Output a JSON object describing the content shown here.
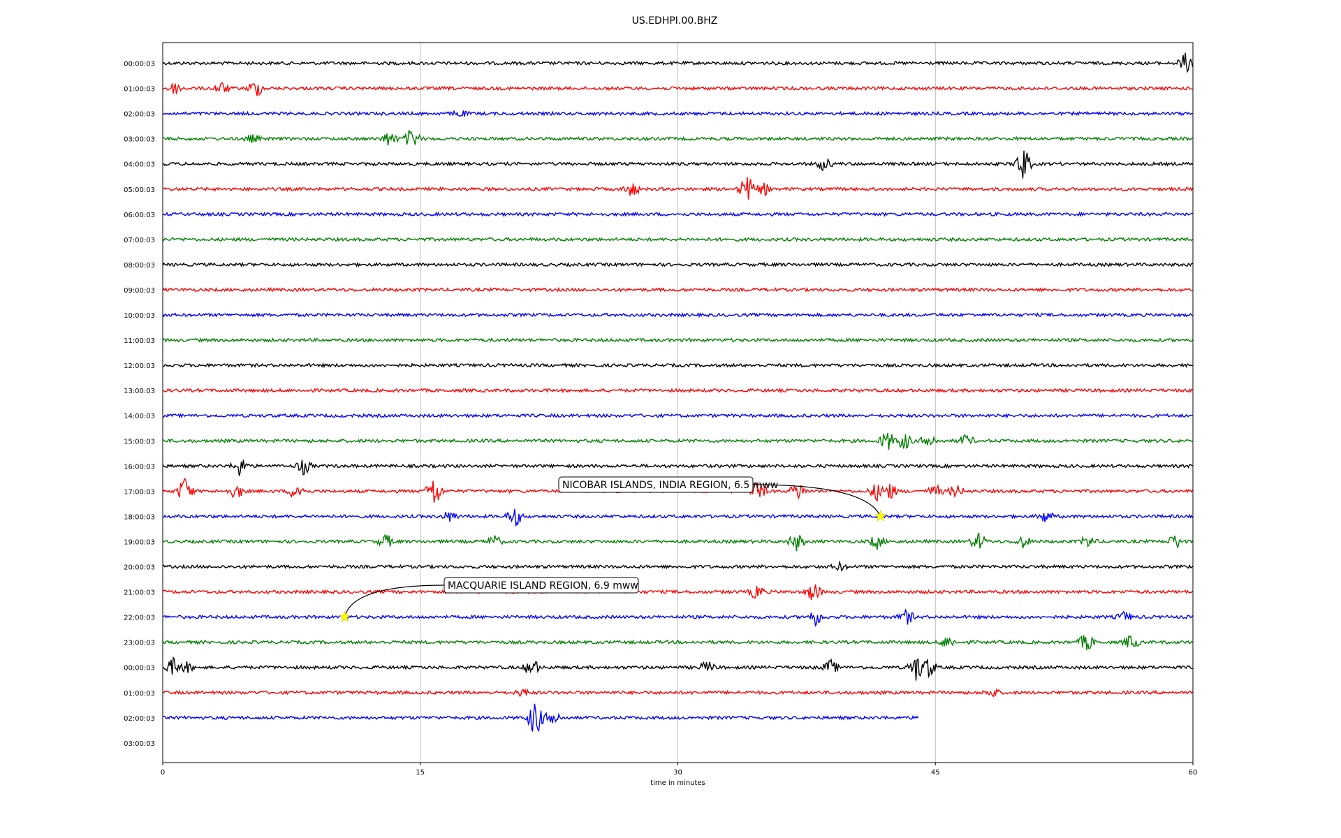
{
  "chart_data": {
    "type": "line",
    "title": "US.EDHPI.00.BHZ",
    "xlabel": "time in minutes",
    "ylabel": "",
    "xlim": [
      0,
      60
    ],
    "x_ticks": [
      {
        "value": 0,
        "label": "0"
      },
      {
        "value": 15,
        "label": "15"
      },
      {
        "value": 30,
        "label": "30"
      },
      {
        "value": 45,
        "label": "45"
      },
      {
        "value": 60,
        "label": "60"
      }
    ],
    "grid": "vertical",
    "rows": [
      {
        "label": "00:00:03",
        "color": "#000000",
        "end_min": 60,
        "events": [
          {
            "t": 59.6,
            "amp": 14
          }
        ]
      },
      {
        "label": "01:00:03",
        "color": "#ff0000",
        "end_min": 60,
        "events": [
          {
            "t": 0.7,
            "amp": 8
          },
          {
            "t": 3.4,
            "amp": 8
          },
          {
            "t": 5.4,
            "amp": 12
          }
        ]
      },
      {
        "label": "02:00:03",
        "color": "#0000ff",
        "end_min": 60,
        "events": [
          {
            "t": 17.3,
            "amp": 4
          }
        ]
      },
      {
        "label": "03:00:03",
        "color": "#008000",
        "end_min": 60,
        "events": [
          {
            "t": 5.2,
            "amp": 5
          },
          {
            "t": 13.2,
            "amp": 10
          },
          {
            "t": 14.5,
            "amp": 14
          }
        ]
      },
      {
        "label": "04:00:03",
        "color": "#000000",
        "end_min": 60,
        "events": [
          {
            "t": 38.5,
            "amp": 9
          },
          {
            "t": 50.1,
            "amp": 24
          }
        ]
      },
      {
        "label": "05:00:03",
        "color": "#ff0000",
        "end_min": 60,
        "events": [
          {
            "t": 27.3,
            "amp": 10
          },
          {
            "t": 34.0,
            "amp": 20
          },
          {
            "t": 35.0,
            "amp": 8
          }
        ]
      },
      {
        "label": "06:00:03",
        "color": "#0000ff",
        "end_min": 60,
        "events": []
      },
      {
        "label": "07:00:03",
        "color": "#008000",
        "end_min": 60,
        "events": []
      },
      {
        "label": "08:00:03",
        "color": "#000000",
        "end_min": 60,
        "events": []
      },
      {
        "label": "09:00:03",
        "color": "#ff0000",
        "end_min": 60,
        "events": []
      },
      {
        "label": "10:00:03",
        "color": "#0000ff",
        "end_min": 60,
        "events": []
      },
      {
        "label": "11:00:03",
        "color": "#008000",
        "end_min": 60,
        "events": []
      },
      {
        "label": "12:00:03",
        "color": "#000000",
        "end_min": 60,
        "events": []
      },
      {
        "label": "13:00:03",
        "color": "#ff0000",
        "end_min": 60,
        "events": []
      },
      {
        "label": "14:00:03",
        "color": "#0000ff",
        "end_min": 60,
        "events": []
      },
      {
        "label": "15:00:03",
        "color": "#008000",
        "end_min": 60,
        "events": [
          {
            "t": 42.2,
            "amp": 14
          },
          {
            "t": 43.2,
            "amp": 12
          },
          {
            "t": 44.6,
            "amp": 10
          },
          {
            "t": 46.8,
            "amp": 8
          }
        ]
      },
      {
        "label": "16:00:03",
        "color": "#000000",
        "end_min": 60,
        "events": [
          {
            "t": 4.5,
            "amp": 14
          },
          {
            "t": 8.2,
            "amp": 11
          }
        ]
      },
      {
        "label": "17:00:03",
        "color": "#ff0000",
        "end_min": 60,
        "events": [
          {
            "t": 1.3,
            "amp": 20
          },
          {
            "t": 4.3,
            "amp": 10
          },
          {
            "t": 7.8,
            "amp": 12
          },
          {
            "t": 15.8,
            "amp": 22
          },
          {
            "t": 34.7,
            "amp": 14
          },
          {
            "t": 37.0,
            "amp": 12
          },
          {
            "t": 41.6,
            "amp": 12
          },
          {
            "t": 42.3,
            "amp": 12
          },
          {
            "t": 45.0,
            "amp": 8
          },
          {
            "t": 46.2,
            "amp": 8
          }
        ]
      },
      {
        "label": "18:00:03",
        "color": "#0000ff",
        "end_min": 60,
        "events": [
          {
            "t": 16.7,
            "amp": 7
          },
          {
            "t": 20.5,
            "amp": 14
          },
          {
            "t": 51.4,
            "amp": 8
          }
        ]
      },
      {
        "label": "19:00:03",
        "color": "#008000",
        "end_min": 60,
        "events": [
          {
            "t": 13.0,
            "amp": 9
          },
          {
            "t": 19.3,
            "amp": 8
          },
          {
            "t": 36.9,
            "amp": 12
          },
          {
            "t": 41.6,
            "amp": 10
          },
          {
            "t": 47.5,
            "amp": 12
          },
          {
            "t": 50.1,
            "amp": 8
          },
          {
            "t": 53.9,
            "amp": 8
          },
          {
            "t": 59.0,
            "amp": 10
          }
        ]
      },
      {
        "label": "20:00:03",
        "color": "#000000",
        "end_min": 60,
        "events": [
          {
            "t": 39.4,
            "amp": 5
          }
        ]
      },
      {
        "label": "21:00:03",
        "color": "#ff0000",
        "end_min": 60,
        "events": [
          {
            "t": 34.6,
            "amp": 10
          },
          {
            "t": 37.9,
            "amp": 13
          }
        ]
      },
      {
        "label": "22:00:03",
        "color": "#0000ff",
        "end_min": 60,
        "events": [
          {
            "t": 38.0,
            "amp": 11
          },
          {
            "t": 43.3,
            "amp": 10
          },
          {
            "t": 56.0,
            "amp": 7
          }
        ]
      },
      {
        "label": "23:00:03",
        "color": "#008000",
        "end_min": 60,
        "events": [
          {
            "t": 45.7,
            "amp": 8
          },
          {
            "t": 53.8,
            "amp": 12
          },
          {
            "t": 56.4,
            "amp": 10
          }
        ]
      },
      {
        "label": "00:00:03",
        "color": "#000000",
        "end_min": 60,
        "events": [
          {
            "t": 0.6,
            "amp": 12
          },
          {
            "t": 1.3,
            "amp": 8
          },
          {
            "t": 21.5,
            "amp": 12
          },
          {
            "t": 31.7,
            "amp": 8
          },
          {
            "t": 38.9,
            "amp": 10
          },
          {
            "t": 43.9,
            "amp": 20
          },
          {
            "t": 44.6,
            "amp": 14
          }
        ]
      },
      {
        "label": "01:00:03",
        "color": "#ff0000",
        "end_min": 60,
        "events": [
          {
            "t": 21.0,
            "amp": 5
          },
          {
            "t": 48.3,
            "amp": 6
          }
        ]
      },
      {
        "label": "02:00:03",
        "color": "#0000ff",
        "end_min": 44,
        "events": [
          {
            "t": 21.7,
            "amp": 26
          },
          {
            "t": 22.7,
            "amp": 12
          }
        ]
      },
      {
        "label": "03:00:03",
        "color": "#0000ff",
        "end_min": 0,
        "events": []
      }
    ],
    "annotations": [
      {
        "text": "NICOBAR ISLANDS, INDIA REGION, 6.5 mww",
        "row": "18:00:03",
        "t": 41.8
      },
      {
        "text": "MACQUARIE ISLAND REGION, 6.9 mww",
        "row": "22:00:03",
        "t": 10.6
      }
    ],
    "marker_color": "#ffff00"
  }
}
